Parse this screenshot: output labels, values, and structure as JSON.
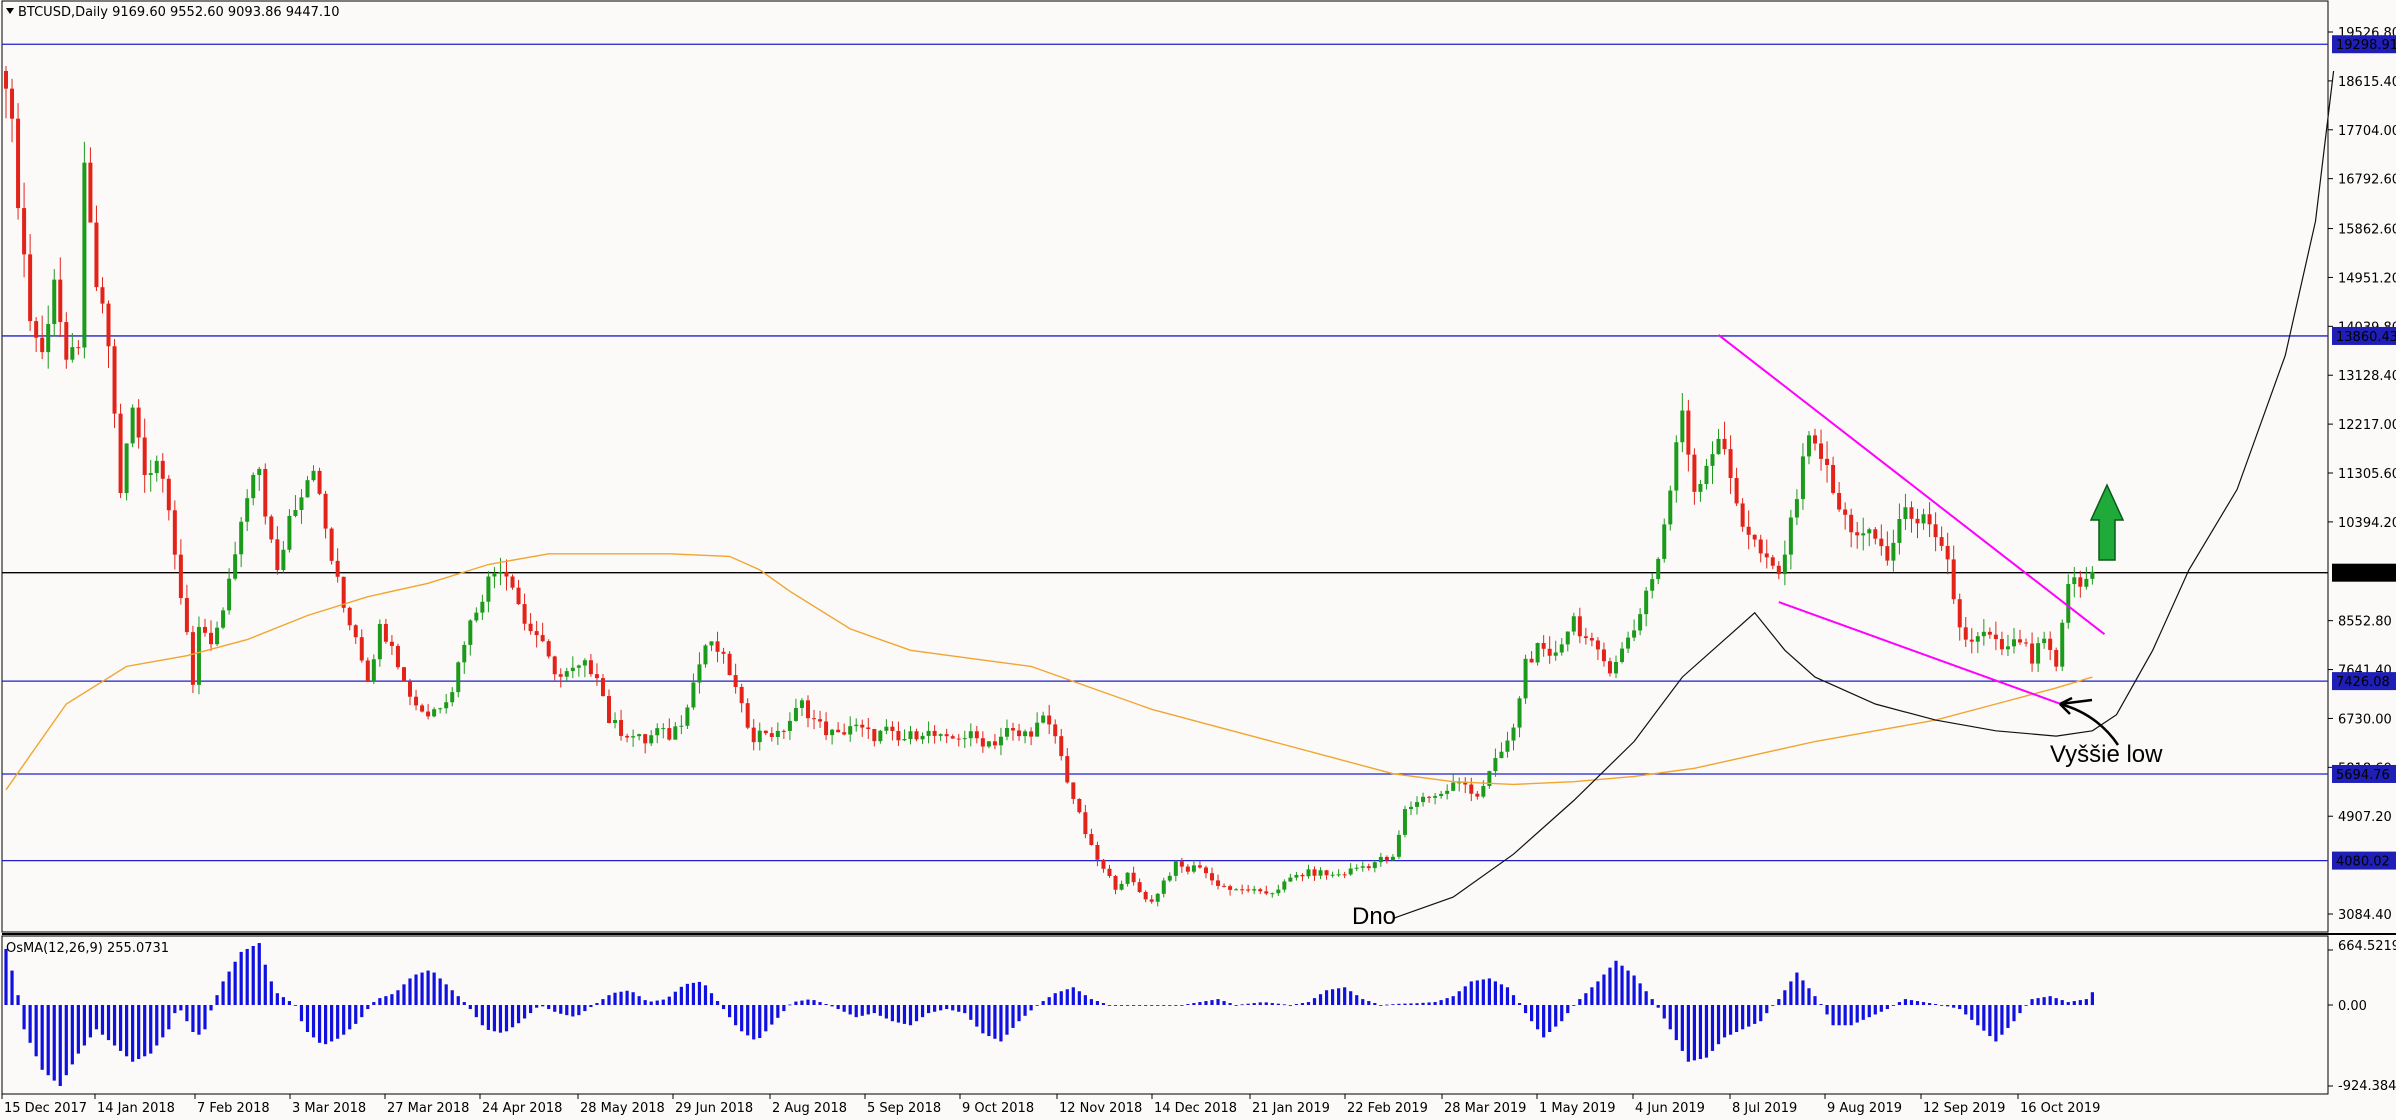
{
  "header": {
    "symbol": "BTCUSD,Daily",
    "ohlc": "9169.60 9552.60 9093.86 9447.10"
  },
  "osma": {
    "label": "OsMA(12,26,9) 255.0731",
    "ticks": [
      "664.5219",
      "0.00",
      "-924.3845"
    ],
    "profile": [
      [
        0,
        0.95
      ],
      [
        1,
        0.4
      ],
      [
        2,
        -0.3
      ],
      [
        4,
        -0.8
      ],
      [
        6,
        -1.0
      ],
      [
        8,
        -0.6
      ],
      [
        10,
        -0.3
      ],
      [
        12,
        -0.5
      ],
      [
        14,
        -0.7
      ],
      [
        16,
        -0.6
      ],
      [
        18,
        -0.3
      ],
      [
        19,
        0.0
      ],
      [
        21,
        -0.4
      ],
      [
        22,
        -0.3
      ],
      [
        24,
        0.4
      ],
      [
        26,
        0.9
      ],
      [
        28,
        1.05
      ],
      [
        29,
        0.5
      ],
      [
        30,
        0.2
      ],
      [
        32,
        0.0
      ],
      [
        33,
        -0.3
      ],
      [
        35,
        -0.5
      ],
      [
        37,
        -0.4
      ],
      [
        39,
        -0.2
      ],
      [
        41,
        0.1
      ],
      [
        43,
        0.2
      ],
      [
        45,
        0.5
      ],
      [
        47,
        0.6
      ],
      [
        49,
        0.3
      ],
      [
        51,
        0.0
      ],
      [
        53,
        -0.3
      ],
      [
        55,
        -0.35
      ],
      [
        57,
        -0.2
      ],
      [
        59,
        0.0
      ],
      [
        61,
        -0.1
      ],
      [
        63,
        -0.15
      ],
      [
        65,
        0.0
      ],
      [
        67,
        0.2
      ],
      [
        69,
        0.25
      ],
      [
        71,
        0.05
      ],
      [
        73,
        0.1
      ],
      [
        75,
        0.35
      ],
      [
        77,
        0.4
      ],
      [
        79,
        0.0
      ],
      [
        81,
        -0.3
      ],
      [
        83,
        -0.45
      ],
      [
        85,
        -0.2
      ],
      [
        87,
        0.05
      ],
      [
        89,
        0.1
      ],
      [
        91,
        0.0
      ],
      [
        92,
        -0.05
      ],
      [
        94,
        -0.15
      ],
      [
        96,
        -0.1
      ],
      [
        98,
        -0.2
      ],
      [
        100,
        -0.25
      ],
      [
        102,
        -0.1
      ],
      [
        104,
        -0.05
      ],
      [
        106,
        -0.1
      ],
      [
        108,
        -0.35
      ],
      [
        110,
        -0.45
      ],
      [
        112,
        -0.2
      ],
      [
        114,
        0.0
      ],
      [
        116,
        0.2
      ],
      [
        118,
        0.3
      ],
      [
        120,
        0.1
      ],
      [
        122,
        0.0
      ],
      [
        126,
        0.0
      ],
      [
        130,
        0.0
      ],
      [
        134,
        0.1
      ],
      [
        136,
        0.0
      ],
      [
        139,
        0.05
      ],
      [
        142,
        0.0
      ],
      [
        144,
        0.05
      ],
      [
        146,
        0.25
      ],
      [
        148,
        0.3
      ],
      [
        150,
        0.1
      ],
      [
        152,
        0.0
      ],
      [
        154,
        0.02
      ],
      [
        156,
        0.03
      ],
      [
        158,
        0.05
      ],
      [
        160,
        0.15
      ],
      [
        162,
        0.4
      ],
      [
        164,
        0.45
      ],
      [
        166,
        0.3
      ],
      [
        168,
        -0.1
      ],
      [
        170,
        -0.4
      ],
      [
        172,
        -0.2
      ],
      [
        174,
        0.1
      ],
      [
        176,
        0.4
      ],
      [
        178,
        0.75
      ],
      [
        180,
        0.5
      ],
      [
        182,
        0.1
      ],
      [
        184,
        -0.3
      ],
      [
        186,
        -0.7
      ],
      [
        188,
        -0.65
      ],
      [
        190,
        -0.4
      ],
      [
        192,
        -0.3
      ],
      [
        194,
        -0.2
      ],
      [
        196,
        0.1
      ],
      [
        198,
        0.55
      ],
      [
        200,
        0.15
      ],
      [
        202,
        -0.25
      ],
      [
        204,
        -0.25
      ],
      [
        206,
        -0.15
      ],
      [
        208,
        -0.05
      ],
      [
        210,
        0.1
      ],
      [
        212,
        0.05
      ],
      [
        214,
        0.0
      ],
      [
        216,
        -0.05
      ],
      [
        218,
        -0.25
      ],
      [
        220,
        -0.45
      ],
      [
        222,
        -0.2
      ],
      [
        224,
        0.1
      ],
      [
        226,
        0.15
      ],
      [
        228,
        0.05
      ],
      [
        230,
        0.1
      ],
      [
        232,
        0.45
      ],
      [
        234,
        0.5
      ]
    ]
  },
  "chart_data": {
    "type": "candlestick",
    "symbol": "BTCUSD,Daily",
    "last_ohlc": {
      "open": 9169.6,
      "high": 9552.6,
      "low": 9093.86,
      "close": 9447.1
    },
    "price_ticks": [
      "19526.80",
      "18615.40",
      "17704.00",
      "16792.60",
      "15862.60",
      "14951.20",
      "14039.80",
      "13128.40",
      "12217.00",
      "11305.60",
      "10394.20",
      "8552.80",
      "7641.40",
      "6730.00",
      "5818.60",
      "4907.20",
      "3084.40"
    ],
    "date_ticks": [
      "15 Dec 2017",
      "14 Jan 2018",
      "7 Feb 2018",
      "3 Mar 2018",
      "27 Mar 2018",
      "24 Apr 2018",
      "28 May 2018",
      "29 Jun 2018",
      "2 Aug 2018",
      "5 Sep 2018",
      "9 Oct 2018",
      "12 Nov 2018",
      "14 Dec 2018",
      "21 Jan 2019",
      "22 Feb 2019",
      "28 Mar 2019",
      "1 May 2019",
      "4 Jun 2019",
      "8 Jul 2019",
      "9 Aug 2019",
      "12 Sep 2019",
      "16 Oct 2019"
    ],
    "horizontal_levels": [
      {
        "label": "19298.91",
        "value": 19298.91,
        "color": "#2020d0"
      },
      {
        "label": "13860.43",
        "value": 13860.43,
        "color": "#2020d0"
      },
      {
        "label": "9447.10",
        "value": 9447.1,
        "color": "#000000"
      },
      {
        "label": "7426.08",
        "value": 7426.08,
        "color": "#2020d0"
      },
      {
        "label": "5694.76",
        "value": 5694.76,
        "color": "#2020d0"
      },
      {
        "label": "4080.02",
        "value": 4080.02,
        "color": "#2020d0"
      }
    ],
    "candle_closes": [
      [
        0,
        18800
      ],
      [
        2,
        16500
      ],
      [
        4,
        14200
      ],
      [
        6,
        13500
      ],
      [
        8,
        15000
      ],
      [
        10,
        13200
      ],
      [
        12,
        13800
      ],
      [
        13,
        16800
      ],
      [
        15,
        14800
      ],
      [
        17,
        13700
      ],
      [
        19,
        11000
      ],
      [
        21,
        12500
      ],
      [
        23,
        11300
      ],
      [
        25,
        11600
      ],
      [
        27,
        10800
      ],
      [
        29,
        9000
      ],
      [
        30,
        8200
      ],
      [
        31,
        7300
      ],
      [
        32,
        8500
      ],
      [
        34,
        8200
      ],
      [
        36,
        8600
      ],
      [
        38,
        9800
      ],
      [
        40,
        10800
      ],
      [
        42,
        11400
      ],
      [
        43,
        10600
      ],
      [
        45,
        9400
      ],
      [
        47,
        10500
      ],
      [
        49,
        11000
      ],
      [
        51,
        11500
      ],
      [
        52,
        10800
      ],
      [
        54,
        9700
      ],
      [
        56,
        8800
      ],
      [
        58,
        8300
      ],
      [
        60,
        7500
      ],
      [
        62,
        8400
      ],
      [
        64,
        8200
      ],
      [
        66,
        7400
      ],
      [
        68,
        7000
      ],
      [
        70,
        6800
      ],
      [
        72,
        7000
      ],
      [
        74,
        7300
      ],
      [
        76,
        8200
      ],
      [
        78,
        8800
      ],
      [
        80,
        9300
      ],
      [
        82,
        9600
      ],
      [
        84,
        9300
      ],
      [
        86,
        8500
      ],
      [
        88,
        8300
      ],
      [
        90,
        7800
      ],
      [
        92,
        7500
      ],
      [
        94,
        7600
      ],
      [
        96,
        7700
      ],
      [
        98,
        7600
      ],
      [
        100,
        6700
      ],
      [
        102,
        6500
      ],
      [
        104,
        6400
      ],
      [
        106,
        6300
      ],
      [
        108,
        6500
      ],
      [
        110,
        6400
      ],
      [
        112,
        6700
      ],
      [
        114,
        7400
      ],
      [
        116,
        8100
      ],
      [
        118,
        8000
      ],
      [
        120,
        7600
      ],
      [
        122,
        6900
      ],
      [
        124,
        6400
      ],
      [
        126,
        6500
      ],
      [
        128,
        6400
      ],
      [
        130,
        6700
      ],
      [
        132,
        7000
      ],
      [
        134,
        6700
      ],
      [
        136,
        6500
      ],
      [
        138,
        6400
      ],
      [
        140,
        6600
      ],
      [
        142,
        6500
      ],
      [
        144,
        6400
      ],
      [
        146,
        6500
      ],
      [
        148,
        6300
      ],
      [
        150,
        6400
      ],
      [
        152,
        6500
      ],
      [
        154,
        6400
      ],
      [
        156,
        6300
      ],
      [
        158,
        6400
      ],
      [
        160,
        6400
      ],
      [
        162,
        6300
      ],
      [
        164,
        6300
      ],
      [
        166,
        6500
      ],
      [
        168,
        6400
      ],
      [
        170,
        6500
      ],
      [
        172,
        6700
      ],
      [
        174,
        6400
      ],
      [
        176,
        5600
      ],
      [
        178,
        4900
      ],
      [
        180,
        4300
      ],
      [
        182,
        3900
      ],
      [
        184,
        3600
      ],
      [
        186,
        3800
      ],
      [
        188,
        3500
      ],
      [
        190,
        3300
      ],
      [
        192,
        3700
      ],
      [
        194,
        4000
      ],
      [
        196,
        3900
      ],
      [
        198,
        4000
      ],
      [
        200,
        3700
      ],
      [
        202,
        3600
      ],
      [
        204,
        3500
      ],
      [
        206,
        3550
      ],
      [
        208,
        3450
      ],
      [
        210,
        3500
      ],
      [
        212,
        3650
      ],
      [
        214,
        3800
      ],
      [
        216,
        3850
      ],
      [
        218,
        3850
      ],
      [
        220,
        3800
      ],
      [
        222,
        3850
      ],
      [
        224,
        3950
      ],
      [
        226,
        4000
      ],
      [
        228,
        4100
      ],
      [
        230,
        4100
      ],
      [
        232,
        5000
      ],
      [
        234,
        5200
      ],
      [
        236,
        5300
      ],
      [
        238,
        5300
      ],
      [
        240,
        5500
      ],
      [
        242,
        5500
      ],
      [
        244,
        5300
      ],
      [
        246,
        5700
      ],
      [
        248,
        6100
      ],
      [
        250,
        6500
      ],
      [
        252,
        7800
      ],
      [
        254,
        8000
      ],
      [
        256,
        7800
      ],
      [
        258,
        8200
      ],
      [
        260,
        8600
      ],
      [
        262,
        8200
      ],
      [
        264,
        7900
      ],
      [
        266,
        7700
      ],
      [
        268,
        8000
      ],
      [
        270,
        8400
      ],
      [
        272,
        9100
      ],
      [
        274,
        9700
      ],
      [
        276,
        11000
      ],
      [
        278,
        12500
      ],
      [
        280,
        11000
      ],
      [
        282,
        11500
      ],
      [
        284,
        12000
      ],
      [
        286,
        11200
      ],
      [
        288,
        10400
      ],
      [
        290,
        10000
      ],
      [
        292,
        9600
      ],
      [
        294,
        9400
      ],
      [
        296,
        10300
      ],
      [
        298,
        11700
      ],
      [
        300,
        12000
      ],
      [
        302,
        11300
      ],
      [
        304,
        10600
      ],
      [
        306,
        10300
      ],
      [
        308,
        10100
      ],
      [
        310,
        10100
      ],
      [
        312,
        9700
      ],
      [
        314,
        10400
      ],
      [
        316,
        10600
      ],
      [
        318,
        10400
      ],
      [
        320,
        10000
      ],
      [
        322,
        9600
      ],
      [
        324,
        8400
      ],
      [
        326,
        8100
      ],
      [
        328,
        8300
      ],
      [
        330,
        8100
      ],
      [
        332,
        8000
      ],
      [
        334,
        8200
      ],
      [
        336,
        7800
      ],
      [
        338,
        8200
      ],
      [
        340,
        7600
      ],
      [
        342,
        9300
      ],
      [
        344,
        9200
      ],
      [
        346,
        9447
      ]
    ],
    "sma_line": [
      [
        0,
        5400
      ],
      [
        10,
        7000
      ],
      [
        20,
        7700
      ],
      [
        30,
        7900
      ],
      [
        40,
        8200
      ],
      [
        50,
        8650
      ],
      [
        60,
        9000
      ],
      [
        70,
        9250
      ],
      [
        80,
        9600
      ],
      [
        90,
        9800
      ],
      [
        100,
        9800
      ],
      [
        110,
        9800
      ],
      [
        120,
        9750
      ],
      [
        125,
        9500
      ],
      [
        130,
        9100
      ],
      [
        140,
        8400
      ],
      [
        150,
        8000
      ],
      [
        160,
        7850
      ],
      [
        170,
        7700
      ],
      [
        180,
        7300
      ],
      [
        190,
        6900
      ],
      [
        200,
        6600
      ],
      [
        210,
        6300
      ],
      [
        220,
        6000
      ],
      [
        230,
        5700
      ],
      [
        240,
        5550
      ],
      [
        250,
        5500
      ],
      [
        260,
        5550
      ],
      [
        270,
        5650
      ],
      [
        280,
        5800
      ],
      [
        290,
        6050
      ],
      [
        300,
        6300
      ],
      [
        310,
        6500
      ],
      [
        320,
        6700
      ],
      [
        330,
        7000
      ],
      [
        340,
        7300
      ],
      [
        346,
        7500
      ]
    ],
    "curve_line": [
      [
        230,
        3000
      ],
      [
        240,
        3400
      ],
      [
        250,
        4200
      ],
      [
        260,
        5200
      ],
      [
        270,
        6300
      ],
      [
        278,
        7500
      ],
      [
        285,
        8200
      ],
      [
        290,
        8700
      ],
      [
        295,
        8000
      ],
      [
        300,
        7500
      ],
      [
        310,
        7000
      ],
      [
        320,
        6700
      ],
      [
        330,
        6500
      ],
      [
        340,
        6400
      ],
      [
        346,
        6500
      ],
      [
        350,
        6800
      ],
      [
        356,
        8000
      ],
      [
        362,
        9500
      ],
      [
        370,
        11000
      ],
      [
        378,
        13500
      ],
      [
        383,
        16000
      ],
      [
        386,
        18800
      ]
    ],
    "trendlines": [
      {
        "color": "#ff00ff",
        "from": [
          284,
          13880
        ],
        "to": [
          348,
          8300
        ]
      },
      {
        "color": "#ff00ff",
        "from": [
          294,
          8900
        ],
        "to": [
          342,
          6950
        ]
      }
    ],
    "annotations": [
      "Dno",
      "Vyššie low"
    ]
  }
}
